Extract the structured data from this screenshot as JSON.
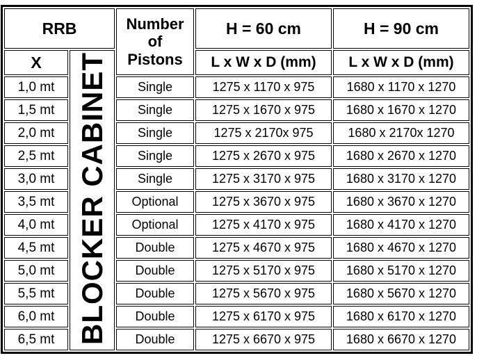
{
  "table": {
    "header": {
      "rrb": "RRB",
      "x": "X",
      "number_of_pistons": "Number\nof\nPistons",
      "h60": "H = 60 cm",
      "h90": "H = 90 cm",
      "dims_h60": "L x W x D (mm)",
      "dims_h90": "L x W x D (mm)"
    },
    "vertical_label": "BLOCKER CABINET",
    "rows": [
      {
        "x": "1,0 mt",
        "pistons": "Single",
        "h60": "1275 x 1170 x 975",
        "h90": "1680 x 1170 x 1270"
      },
      {
        "x": "1,5 mt",
        "pistons": "Single",
        "h60": "1275 x 1670 x 975",
        "h90": "1680 x 1670 x 1270"
      },
      {
        "x": "2,0 mt",
        "pistons": "Single",
        "h60": "1275 x 2170x 975",
        "h90": "1680 x 2170x 1270"
      },
      {
        "x": "2,5 mt",
        "pistons": "Single",
        "h60": "1275 x 2670 x 975",
        "h90": "1680 x 2670 x 1270"
      },
      {
        "x": "3,0 mt",
        "pistons": "Single",
        "h60": "1275 x 3170 x 975",
        "h90": "1680 x 3170 x 1270"
      },
      {
        "x": "3,5 mt",
        "pistons": "Optional",
        "h60": "1275 x 3670 x 975",
        "h90": "1680 x 3670 x 1270"
      },
      {
        "x": "4,0 mt",
        "pistons": "Optional",
        "h60": "1275 x 4170 x 975",
        "h90": "1680 x 4170 x 1270"
      },
      {
        "x": "4,5 mt",
        "pistons": "Double",
        "h60": "1275 x 4670 x 975",
        "h90": "1680 x 4670 x 1270"
      },
      {
        "x": "5,0 mt",
        "pistons": "Double",
        "h60": "1275 x 5170 x 975",
        "h90": "1680 x 5170 x 1270"
      },
      {
        "x": "5,5 mt",
        "pistons": "Double",
        "h60": "1275 x 5670 x 975",
        "h90": "1680 x 5670 x 1270"
      },
      {
        "x": "6,0 mt",
        "pistons": "Double",
        "h60": "1275 x 6170 x 975",
        "h90": "1680 x 6170 x 1270"
      },
      {
        "x": "6,5 mt",
        "pistons": "Double",
        "h60": "1275 x 6670 x 975",
        "h90": "1680 x 6670 x 1270"
      }
    ]
  },
  "colors": {
    "border": "#000000",
    "background": "#ffffff",
    "text": "#000000"
  }
}
